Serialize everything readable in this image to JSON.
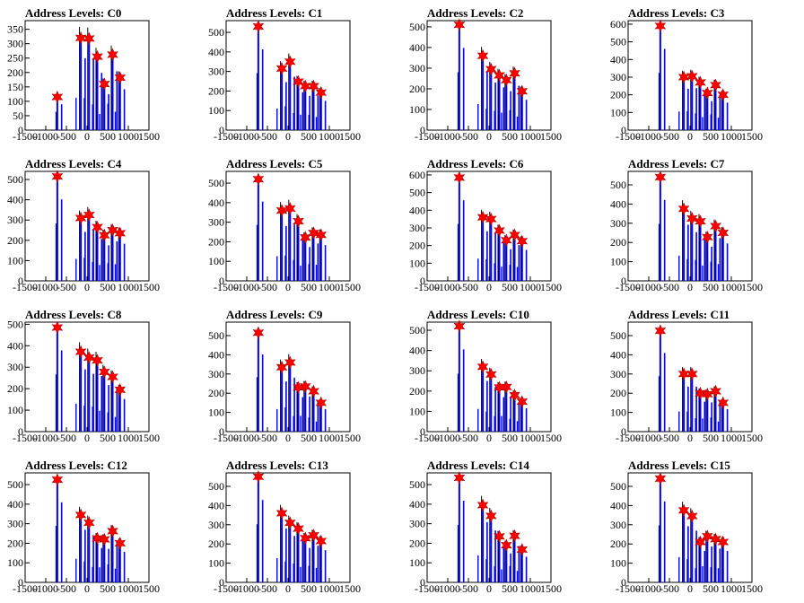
{
  "chart_data": [
    {
      "type": "bar",
      "title": "Address Levels: C0",
      "xlim": [
        -1500,
        1500
      ],
      "ylim": [
        0,
        380
      ],
      "yticks": [
        0,
        50,
        100,
        150,
        200,
        250,
        300,
        350
      ],
      "xticks": [
        -1500,
        -1000,
        -500,
        0,
        500,
        1000,
        1500
      ],
      "star_x": [
        -720,
        -150,
        50,
        250,
        420,
        620,
        800
      ],
      "star_y": [
        115,
        320,
        318,
        255,
        160,
        262,
        182
      ]
    },
    {
      "type": "bar",
      "title": "Address Levels: C1",
      "xlim": [
        -1500,
        1500
      ],
      "ylim": [
        0,
        560
      ],
      "yticks": [
        0,
        100,
        200,
        300,
        400,
        500
      ],
      "xticks": [
        -1500,
        -1000,
        -500,
        0,
        500,
        1000,
        1500
      ],
      "star_x": [
        -720,
        -150,
        50,
        250,
        420,
        620,
        800
      ],
      "star_y": [
        530,
        315,
        350,
        248,
        225,
        225,
        192
      ]
    },
    {
      "type": "bar",
      "title": "Address Levels: C2",
      "xlim": [
        -1500,
        1500
      ],
      "ylim": [
        0,
        530
      ],
      "yticks": [
        0,
        100,
        200,
        300,
        400,
        500
      ],
      "xticks": [
        -1500,
        -1000,
        -500,
        0,
        500,
        1000,
        1500
      ],
      "star_x": [
        -720,
        -150,
        50,
        250,
        420,
        620,
        800
      ],
      "star_y": [
        510,
        360,
        295,
        265,
        242,
        275,
        188
      ]
    },
    {
      "type": "bar",
      "title": "Address Levels: C3",
      "xlim": [
        -1500,
        1500
      ],
      "ylim": [
        0,
        620
      ],
      "yticks": [
        0,
        100,
        200,
        300,
        400,
        500,
        600
      ],
      "xticks": [
        -1500,
        -1000,
        -500,
        0,
        500,
        1000,
        1500
      ],
      "star_x": [
        -720,
        -150,
        50,
        250,
        420,
        620,
        800
      ],
      "star_y": [
        590,
        300,
        305,
        270,
        210,
        255,
        200
      ]
    },
    {
      "type": "bar",
      "title": "Address Levels: C4",
      "xlim": [
        -1500,
        1500
      ],
      "ylim": [
        0,
        540
      ],
      "yticks": [
        0,
        100,
        200,
        300,
        400,
        500
      ],
      "xticks": [
        -1500,
        -1000,
        -500,
        0,
        500,
        1000,
        1500
      ],
      "star_x": [
        -720,
        -150,
        50,
        250,
        420,
        620,
        800
      ],
      "star_y": [
        515,
        310,
        325,
        265,
        225,
        250,
        235
      ]
    },
    {
      "type": "bar",
      "title": "Address Levels: C5",
      "xlim": [
        -1500,
        1500
      ],
      "ylim": [
        0,
        560
      ],
      "yticks": [
        0,
        100,
        200,
        300,
        400,
        500
      ],
      "xticks": [
        -1500,
        -1000,
        -500,
        0,
        500,
        1000,
        1500
      ],
      "star_x": [
        -720,
        -150,
        50,
        250,
        420,
        620,
        800
      ],
      "star_y": [
        520,
        360,
        370,
        305,
        222,
        245,
        235
      ]
    },
    {
      "type": "bar",
      "title": "Address Levels: C6",
      "xlim": [
        -1500,
        1500
      ],
      "ylim": [
        0,
        620
      ],
      "yticks": [
        0,
        100,
        200,
        300,
        400,
        500,
        600
      ],
      "xticks": [
        -1500,
        -1000,
        -500,
        0,
        500,
        1000,
        1500
      ],
      "star_x": [
        -720,
        -150,
        50,
        250,
        420,
        620,
        800
      ],
      "star_y": [
        585,
        360,
        350,
        285,
        230,
        260,
        225
      ]
    },
    {
      "type": "bar",
      "title": "Address Levels: C7",
      "xlim": [
        -1500,
        1500
      ],
      "ylim": [
        0,
        570
      ],
      "yticks": [
        0,
        100,
        200,
        300,
        400,
        500
      ],
      "xticks": [
        -1500,
        -1000,
        -500,
        0,
        500,
        1000,
        1500
      ],
      "star_x": [
        -720,
        -150,
        50,
        250,
        420,
        620,
        800
      ],
      "star_y": [
        540,
        375,
        325,
        310,
        228,
        285,
        250
      ]
    },
    {
      "type": "bar",
      "title": "Address Levels: C8",
      "xlim": [
        -1500,
        1500
      ],
      "ylim": [
        0,
        510
      ],
      "yticks": [
        0,
        100,
        200,
        300,
        400,
        500
      ],
      "xticks": [
        -1500,
        -1000,
        -500,
        0,
        500,
        1000,
        1500
      ],
      "star_x": [
        -720,
        -150,
        50,
        250,
        420,
        620,
        800
      ],
      "star_y": [
        485,
        372,
        345,
        332,
        278,
        255,
        195
      ]
    },
    {
      "type": "bar",
      "title": "Address Levels: C9",
      "xlim": [
        -1500,
        1500
      ],
      "ylim": [
        0,
        570
      ],
      "yticks": [
        0,
        100,
        200,
        300,
        400,
        500
      ],
      "xticks": [
        -1500,
        -1000,
        -500,
        0,
        500,
        1000,
        1500
      ],
      "star_x": [
        -720,
        -150,
        50,
        250,
        420,
        620,
        800
      ],
      "star_y": [
        515,
        335,
        360,
        230,
        235,
        210,
        150
      ]
    },
    {
      "type": "bar",
      "title": "Address Levels: C10",
      "xlim": [
        -1500,
        1500
      ],
      "ylim": [
        0,
        540
      ],
      "yticks": [
        0,
        100,
        200,
        300,
        400,
        500
      ],
      "xticks": [
        -1500,
        -1000,
        -500,
        0,
        500,
        1000,
        1500
      ],
      "star_x": [
        -720,
        -150,
        50,
        250,
        420,
        620,
        800
      ],
      "star_y": [
        520,
        320,
        282,
        218,
        220,
        180,
        148
      ]
    },
    {
      "type": "bar",
      "title": "Address Levels: C11",
      "xlim": [
        -1500,
        1500
      ],
      "ylim": [
        0,
        570
      ],
      "yticks": [
        0,
        100,
        200,
        300,
        400,
        500
      ],
      "xticks": [
        -1500,
        -1000,
        -500,
        0,
        500,
        1000,
        1500
      ],
      "star_x": [
        -720,
        -150,
        50,
        250,
        420,
        620,
        800
      ],
      "star_y": [
        525,
        300,
        300,
        200,
        195,
        210,
        150
      ]
    },
    {
      "type": "bar",
      "title": "Address Levels: C12",
      "xlim": [
        -1500,
        1500
      ],
      "ylim": [
        0,
        560
      ],
      "yticks": [
        0,
        100,
        200,
        300,
        400,
        500
      ],
      "xticks": [
        -1500,
        -1000,
        -500,
        0,
        500,
        1000,
        1500
      ],
      "star_x": [
        -720,
        -150,
        50,
        250,
        420,
        620,
        800
      ],
      "star_y": [
        525,
        345,
        305,
        225,
        220,
        262,
        200
      ]
    },
    {
      "type": "bar",
      "title": "Address Levels: C13",
      "xlim": [
        -1500,
        1500
      ],
      "ylim": [
        0,
        570
      ],
      "yticks": [
        0,
        100,
        200,
        300,
        400,
        500
      ],
      "xticks": [
        -1500,
        -1000,
        -500,
        0,
        500,
        1000,
        1500
      ],
      "star_x": [
        -720,
        -150,
        50,
        250,
        420,
        620,
        800
      ],
      "star_y": [
        550,
        360,
        310,
        280,
        230,
        245,
        215
      ]
    },
    {
      "type": "bar",
      "title": "Address Levels: C14",
      "xlim": [
        -1500,
        1500
      ],
      "ylim": [
        0,
        560
      ],
      "yticks": [
        0,
        100,
        200,
        300,
        400,
        500
      ],
      "xticks": [
        -1500,
        -1000,
        -500,
        0,
        500,
        1000,
        1500
      ],
      "star_x": [
        -720,
        -150,
        50,
        250,
        420,
        620,
        800
      ],
      "star_y": [
        535,
        395,
        340,
        235,
        190,
        238,
        168
      ]
    },
    {
      "type": "bar",
      "title": "Address Levels: C15",
      "xlim": [
        -1500,
        1500
      ],
      "ylim": [
        0,
        570
      ],
      "yticks": [
        0,
        100,
        200,
        300,
        400,
        500
      ],
      "xticks": [
        -1500,
        -1000,
        -500,
        0,
        500,
        1000,
        1500
      ],
      "star_x": [
        -720,
        -150,
        50,
        250,
        420,
        620,
        800
      ],
      "star_y": [
        540,
        375,
        345,
        210,
        240,
        225,
        210
      ]
    }
  ]
}
